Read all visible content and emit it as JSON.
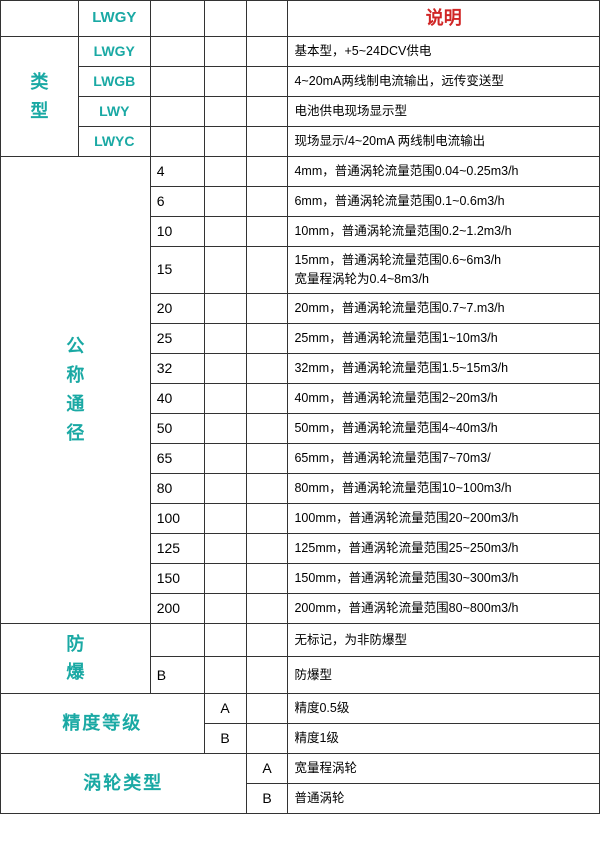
{
  "colors": {
    "accent": "#1aa9a4",
    "header_red": "#d02626",
    "border": "#333333",
    "text": "#000000"
  },
  "header": {
    "col_code": "LWGY",
    "col_desc": "说明"
  },
  "type_section": {
    "label": "类型",
    "rows": [
      {
        "code": "LWGY",
        "desc": "基本型，+5~24DCV供电"
      },
      {
        "code": "LWGB",
        "desc": "4~20mA两线制电流输出，远传变送型"
      },
      {
        "code": "LWY",
        "desc": "电池供电现场显示型"
      },
      {
        "code": "LWYC",
        "desc": "现场显示/4~20mA 两线制电流输出"
      }
    ]
  },
  "diameter_section": {
    "label_chars": [
      "公",
      "称",
      "通",
      "径"
    ],
    "rows": [
      {
        "num": "4",
        "desc": "4mm，普通涡轮流量范围0.04~0.25m3/h"
      },
      {
        "num": "6",
        "desc": "6mm，普通涡轮流量范围0.1~0.6m3/h"
      },
      {
        "num": "10",
        "desc": "10mm，普通涡轮流量范围0.2~1.2m3/h"
      },
      {
        "num": "15",
        "desc": "15mm，普通涡轮流量范围0.6~6m3/h\n宽量程涡轮为0.4~8m3/h"
      },
      {
        "num": "20",
        "desc": "20mm，普通涡轮流量范围0.7~7.m3/h"
      },
      {
        "num": "25",
        "desc": "25mm，普通涡轮流量范围1~10m3/h"
      },
      {
        "num": "32",
        "desc": "32mm，普通涡轮流量范围1.5~15m3/h"
      },
      {
        "num": "40",
        "desc": "40mm，普通涡轮流量范围2~20m3/h"
      },
      {
        "num": "50",
        "desc": "50mm，普通涡轮流量范围4~40m3/h"
      },
      {
        "num": "65",
        "desc": "65mm，普通涡轮流量范围7~70m3/"
      },
      {
        "num": "80",
        "desc": "80mm，普通涡轮流量范围10~100m3/h"
      },
      {
        "num": "100",
        "desc": "100mm，普通涡轮流量范围20~200m3/h"
      },
      {
        "num": "125",
        "desc": "125mm，普通涡轮流量范围25~250m3/h"
      },
      {
        "num": "150",
        "desc": "150mm，普通涡轮流量范围30~300m3/h"
      },
      {
        "num": "200",
        "desc": "200mm，普通涡轮流量范围80~800m3/h"
      }
    ]
  },
  "explosion_section": {
    "label": "防爆",
    "rows": [
      {
        "code": "",
        "desc": "无标记，为非防爆型"
      },
      {
        "code": "B",
        "desc": "防爆型"
      }
    ]
  },
  "precision_section": {
    "label": "精度等级",
    "rows": [
      {
        "code": "A",
        "desc": "精度0.5级"
      },
      {
        "code": "B",
        "desc": "精度1级"
      }
    ]
  },
  "turbine_section": {
    "label": "涡轮类型",
    "rows": [
      {
        "code": "A",
        "desc": "宽量程涡轮"
      },
      {
        "code": "B",
        "desc": "普通涡轮"
      }
    ]
  }
}
